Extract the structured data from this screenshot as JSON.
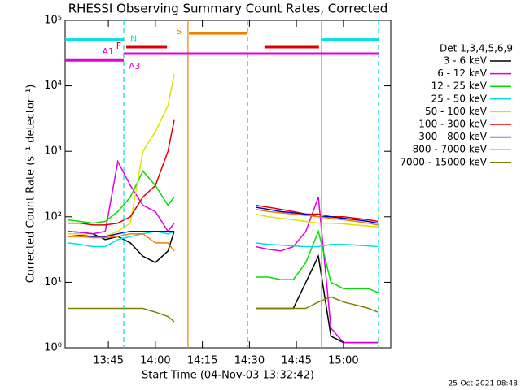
{
  "chart_data": {
    "type": "line",
    "title": "RHESSI Observing Summary Count Rates, Corrected",
    "xlabel": "Start Time (04-Nov-03 13:32:42)",
    "ylabel": "Corrected Count Rate (s⁻¹ detector⁻¹)",
    "stamp": "25-Oct-2021 08:48",
    "legend_title": "Det 1,3,4,5,6,9",
    "legend": "right",
    "log_y": true,
    "xlim": [
      31.2,
      135.1
    ],
    "ylim": [
      1,
      100000
    ],
    "xticks": [
      {
        "value": 45,
        "label": "13:45"
      },
      {
        "value": 60,
        "label": "14:00"
      },
      {
        "value": 75,
        "label": "14:15"
      },
      {
        "value": 90,
        "label": "14:30"
      },
      {
        "value": 105,
        "label": "14:45"
      },
      {
        "value": 120,
        "label": "15:00"
      }
    ],
    "yticks": [
      {
        "value": 1,
        "label": "10⁰"
      },
      {
        "value": 10,
        "label": "10¹"
      },
      {
        "value": 100,
        "label": "10²"
      },
      {
        "value": 1000,
        "label": "10³"
      },
      {
        "value": 10000,
        "label": "10⁴"
      },
      {
        "value": 100000,
        "label": "10⁵"
      }
    ],
    "x": [
      32,
      36,
      40,
      44,
      48,
      52,
      56,
      60,
      64,
      66,
      76,
      92,
      96,
      100,
      104,
      108,
      112,
      116,
      120,
      124,
      128,
      131
    ],
    "series": [
      {
        "name": "3 - 6 keV",
        "color": "#000000",
        "values": [
          60,
          58,
          55,
          45,
          50,
          40,
          25,
          20,
          30,
          60,
          null,
          4,
          4,
          4,
          4,
          10,
          25,
          1.5,
          1.2,
          1.2,
          1.2,
          1.2
        ]
      },
      {
        "name": "6 - 12 keV",
        "color": "#e000e0",
        "values": [
          60,
          58,
          55,
          60,
          700,
          300,
          150,
          120,
          60,
          80,
          null,
          35,
          32,
          30,
          35,
          60,
          200,
          2,
          1.2,
          1.2,
          1.2,
          1.2
        ]
      },
      {
        "name": "12 - 25 keV",
        "color": "#00e000",
        "values": [
          90,
          85,
          80,
          85,
          120,
          200,
          500,
          300,
          150,
          200,
          null,
          12,
          12,
          11,
          11,
          20,
          60,
          10,
          8,
          8,
          8,
          7
        ]
      },
      {
        "name": "25 - 50 keV",
        "color": "#00e0e0",
        "values": [
          40,
          38,
          35,
          35,
          45,
          50,
          55,
          60,
          55,
          60,
          null,
          40,
          38,
          37,
          36,
          35,
          35,
          38,
          38,
          37,
          36,
          35
        ]
      },
      {
        "name": "50 - 100 keV",
        "color": "#e0e000",
        "values": [
          55,
          55,
          50,
          50,
          60,
          80,
          1000,
          2000,
          5000,
          15000,
          null,
          110,
          100,
          95,
          90,
          85,
          80,
          80,
          78,
          75,
          72,
          70
        ]
      },
      {
        "name": "100 - 300 keV",
        "color": "#e00000",
        "values": [
          80,
          80,
          75,
          75,
          80,
          100,
          200,
          300,
          1000,
          3000,
          null,
          150,
          140,
          130,
          120,
          110,
          110,
          100,
          100,
          95,
          90,
          85
        ]
      },
      {
        "name": "300 - 800 keV",
        "color": "#0000e0",
        "values": [
          50,
          52,
          50,
          50,
          55,
          60,
          60,
          60,
          60,
          60,
          null,
          140,
          130,
          120,
          115,
          110,
          100,
          100,
          95,
          90,
          85,
          80
        ]
      },
      {
        "name": "800 - 7000 keV",
        "color": "#f08000",
        "values": [
          50,
          50,
          48,
          48,
          50,
          55,
          55,
          40,
          40,
          30,
          null,
          130,
          120,
          115,
          110,
          105,
          100,
          95,
          90,
          85,
          80,
          75
        ]
      },
      {
        "name": "7000 - 15000 keV",
        "color": "#808000",
        "values": [
          4,
          4,
          4,
          4,
          4,
          4,
          4,
          3.5,
          3,
          2.5,
          null,
          4,
          4,
          4,
          4,
          4,
          5,
          6,
          5,
          4.5,
          4,
          3.5
        ]
      }
    ],
    "flags": [
      {
        "label": "N",
        "color": "#00e0e0",
        "value": 51000,
        "segments": [
          [
            31.2,
            49.9
          ],
          [
            113.0,
            131.2
          ]
        ]
      },
      {
        "label": "F",
        "color": "#e00000",
        "value": 39000,
        "segments": [
          [
            50.7,
            63.7
          ],
          [
            94.8,
            112.2
          ]
        ]
      },
      {
        "label": "A1",
        "color": "#e000e0",
        "value": 31000,
        "segments": [
          [
            49.9,
            131.2
          ]
        ]
      },
      {
        "label": "A3",
        "color": "#e000e0",
        "value": 24500,
        "segments": [
          [
            31.2,
            49.9
          ]
        ]
      },
      {
        "label": "S",
        "color": "#f08000",
        "value": 63000,
        "segments": [
          [
            70.7,
            89.4
          ]
        ]
      }
    ],
    "vlines": [
      {
        "x": 49.9,
        "color": "#00e0e0",
        "dashed": true
      },
      {
        "x": 131.2,
        "color": "#00e0e0",
        "dashed": true
      },
      {
        "x": 113.0,
        "color": "#00e0e0",
        "dashed": false
      },
      {
        "x": 70.4,
        "color": "#f08000",
        "dashed": false
      },
      {
        "x": 89.4,
        "color": "#f08000",
        "dashed": true
      }
    ]
  }
}
